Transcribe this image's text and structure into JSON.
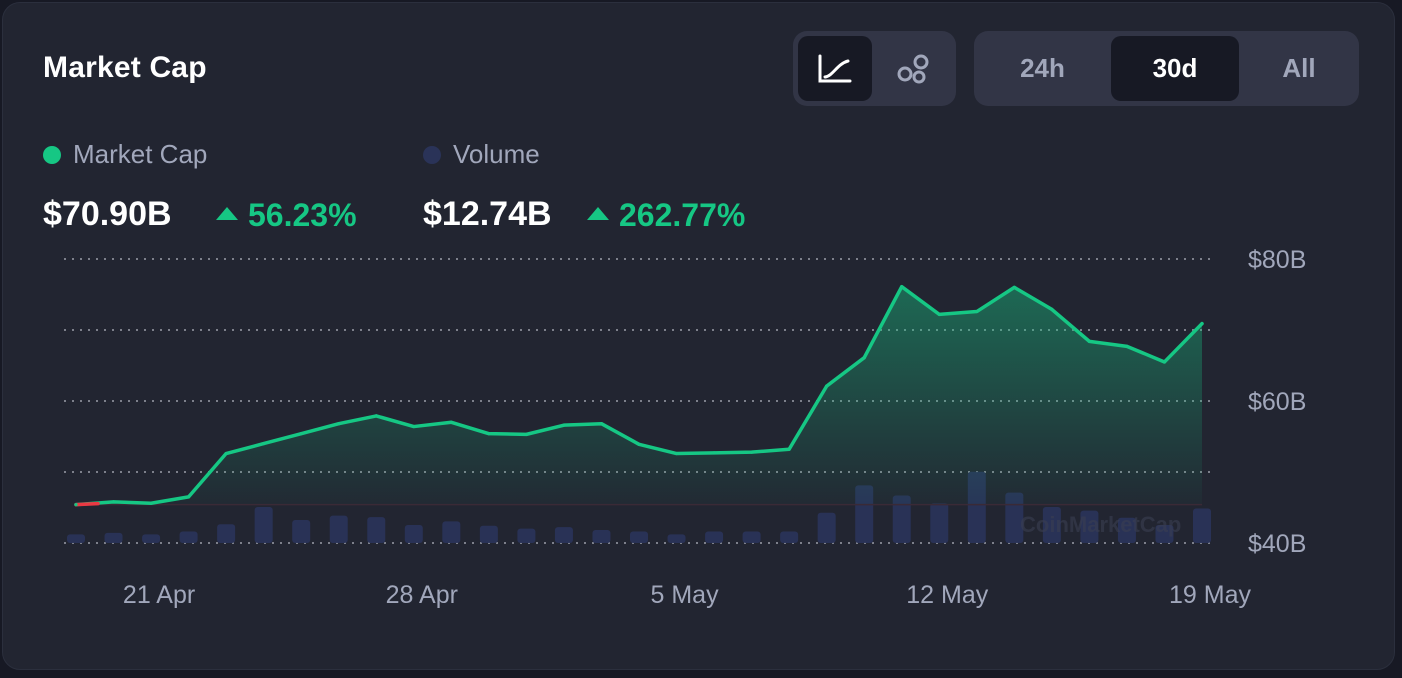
{
  "header": {
    "title": "Market Cap"
  },
  "chart_type_toggle": [
    {
      "name": "line-chart-icon",
      "active": true
    },
    {
      "name": "bubbles-icon",
      "active": false
    }
  ],
  "range_tabs": [
    {
      "label": "24h",
      "active": false
    },
    {
      "label": "30d",
      "active": true
    },
    {
      "label": "All",
      "active": false
    }
  ],
  "legend": {
    "market_cap": {
      "label": "Market Cap",
      "value": "$70.90B",
      "change": "56.23%",
      "color": "#16c784"
    },
    "volume": {
      "label": "Volume",
      "value": "$12.74B",
      "change": "262.77%",
      "color": "#2a3358"
    }
  },
  "watermark": "CoinMarketCap",
  "colors": {
    "up": "#16c784",
    "down": "#ea3943",
    "volume_bar": "#2a3358",
    "background": "#222531"
  },
  "chart_data": {
    "type": "area",
    "x": [
      "19 Apr",
      "20 Apr",
      "21 Apr",
      "22 Apr",
      "23 Apr",
      "24 Apr",
      "25 Apr",
      "26 Apr",
      "27 Apr",
      "28 Apr",
      "29 Apr",
      "30 Apr",
      "1 May",
      "2 May",
      "3 May",
      "4 May",
      "5 May",
      "6 May",
      "7 May",
      "8 May",
      "9 May",
      "10 May",
      "11 May",
      "12 May",
      "13 May",
      "14 May",
      "15 May",
      "16 May",
      "17 May",
      "18 May",
      "19 May"
    ],
    "series": [
      {
        "name": "Market Cap",
        "unit": "B USD",
        "values": [
          45.4,
          45.8,
          45.6,
          46.5,
          52.6,
          54.0,
          55.4,
          56.8,
          57.9,
          56.4,
          57.0,
          55.4,
          55.3,
          56.6,
          56.8,
          53.9,
          52.6,
          52.7,
          52.8,
          53.2,
          62.1,
          66.1,
          76.1,
          72.2,
          72.6,
          76.0,
          72.9,
          68.4,
          67.7,
          65.5,
          70.9
        ]
      },
      {
        "name": "Volume",
        "relative_values": [
          0.12,
          0.14,
          0.12,
          0.16,
          0.26,
          0.5,
          0.32,
          0.38,
          0.36,
          0.25,
          0.3,
          0.24,
          0.2,
          0.22,
          0.18,
          0.16,
          0.12,
          0.16,
          0.16,
          0.16,
          0.42,
          0.8,
          0.66,
          0.55,
          0.99,
          0.7,
          0.5,
          0.45,
          0.35,
          0.25,
          0.48
        ]
      }
    ],
    "x_ticks": [
      "21 Apr",
      "28 Apr",
      "5 May",
      "12 May",
      "19 May"
    ],
    "x_tick_index": [
      2,
      9,
      16,
      23,
      30
    ],
    "y_ticks": [
      "$80B",
      "$60B",
      "$40B"
    ],
    "y_tick_values": [
      80,
      60,
      40
    ],
    "grid_values": [
      80,
      70,
      60,
      50,
      40
    ],
    "ylim": [
      40,
      80
    ],
    "grid": "dotted-horizontal"
  }
}
